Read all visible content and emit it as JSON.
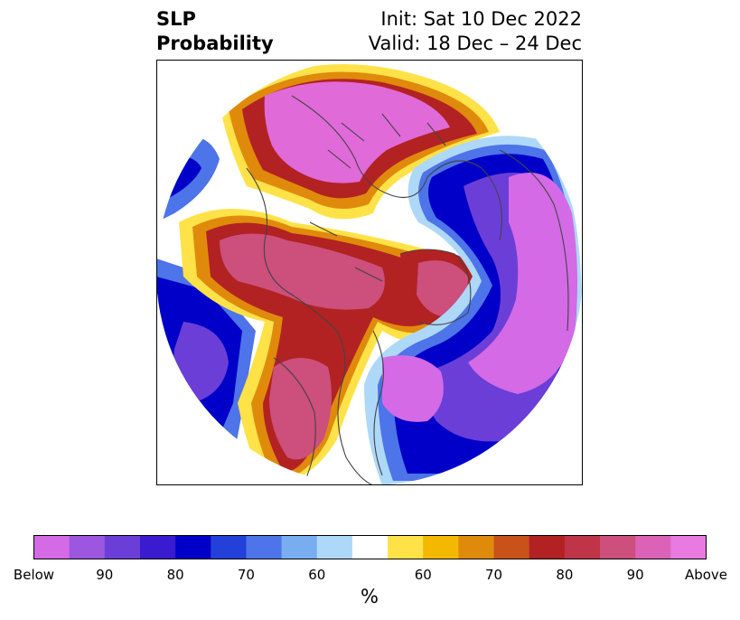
{
  "header": {
    "title_line1": "SLP",
    "title_line2": "Probability",
    "init": "Init: Sat 10 Dec 2022",
    "valid": "Valid: 18 Dec – 24 Dec"
  },
  "colorbar": {
    "unit": "%",
    "colors": [
      "#d46ae6",
      "#9c56e0",
      "#6b3ed8",
      "#3a1bd0",
      "#0000c8",
      "#2340d8",
      "#4d74e8",
      "#78aef0",
      "#aed8f8",
      "#ffffff",
      "#ffe248",
      "#f4b800",
      "#e08a0c",
      "#c8521a",
      "#b22222",
      "#c03448",
      "#cc4f7c",
      "#dc62b8",
      "#e87ae2"
    ],
    "tick_labels": [
      "Below",
      "90",
      "80",
      "70",
      "60",
      "60",
      "70",
      "80",
      "90",
      "Above"
    ]
  },
  "map": {
    "colors": {
      "above_strong": "#e06ad8",
      "above_high": "#cc4f7c",
      "above_mid": "#b22222",
      "above_low": "#e08a0c",
      "above_faint": "#ffe248",
      "below_faint": "#aed8f8",
      "below_low": "#4d74e8",
      "below_mid": "#0000c8",
      "below_high": "#6b3ed8",
      "below_strong": "#d46ae6",
      "neutral": "#ffffff",
      "coastline": "#444444"
    }
  }
}
